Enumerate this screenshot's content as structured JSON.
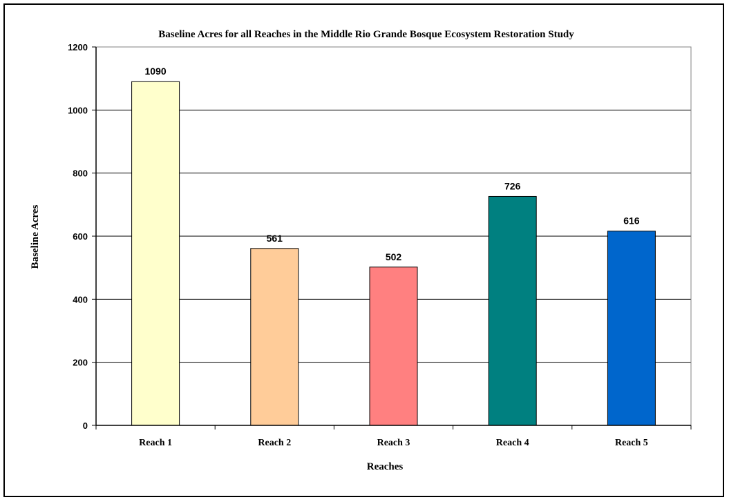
{
  "chart_data": {
    "type": "bar",
    "title": "Baseline Acres for all Reaches in the Middle Rio Grande Bosque Ecosystem Restoration Study",
    "xlabel": "Reaches",
    "ylabel": "Baseline Acres",
    "categories": [
      "Reach 1",
      "Reach 2",
      "Reach 3",
      "Reach 4",
      "Reach 5"
    ],
    "values": [
      1090,
      561,
      502,
      726,
      616
    ],
    "data_labels": [
      "1090",
      "561",
      "502",
      "726",
      "616"
    ],
    "bar_colors": [
      "#ffffcc",
      "#ffcc99",
      "#ff8080",
      "#008080",
      "#0066cc"
    ],
    "ylim": [
      0,
      1200
    ],
    "yticks": [
      0,
      200,
      400,
      600,
      800,
      1000,
      1200
    ],
    "ytick_labels": [
      "0",
      "200",
      "400",
      "600",
      "800",
      "1000",
      "1200"
    ],
    "grid": true,
    "legend": "none"
  }
}
